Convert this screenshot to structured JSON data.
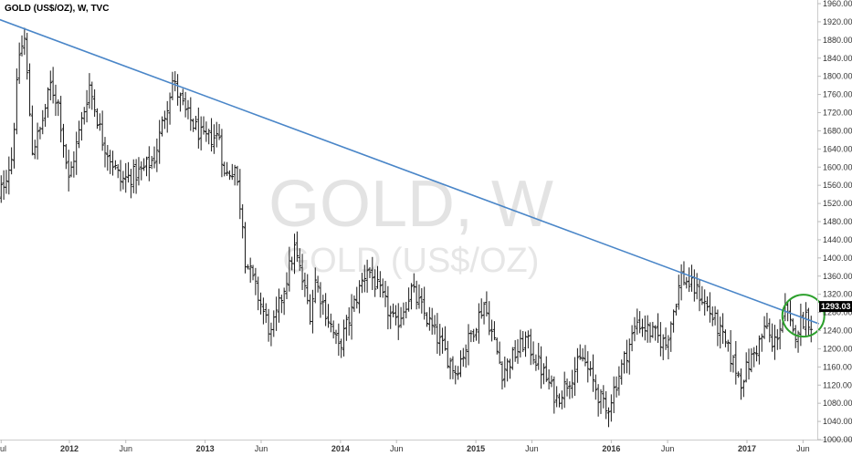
{
  "chart_data": {
    "type": "ohlc",
    "title": "GOLD (US$/OZ), W, TVC",
    "watermark_symbol": "GOLD, W",
    "watermark_name": "GOLD (US$/OZ)",
    "ylim": [
      1000,
      1960
    ],
    "y_ticks": [
      "1960.00",
      "1920.00",
      "1880.00",
      "1840.00",
      "1800.00",
      "1760.00",
      "1720.00",
      "1680.00",
      "1640.00",
      "1600.00",
      "1560.00",
      "1520.00",
      "1480.00",
      "1440.00",
      "1400.00",
      "1360.00",
      "1320.00",
      "1280.00",
      "1240.00",
      "1200.00",
      "1160.00",
      "1120.00",
      "1080.00",
      "1040.00",
      "1000.00"
    ],
    "x_ticks": [
      {
        "label": "Jul",
        "date": "2011-07-01",
        "bold": false
      },
      {
        "label": "2012",
        "date": "2012-01-01",
        "bold": true
      },
      {
        "label": "Jun",
        "date": "2012-06-01",
        "bold": false
      },
      {
        "label": "2013",
        "date": "2013-01-01",
        "bold": true
      },
      {
        "label": "Jun",
        "date": "2013-06-01",
        "bold": false
      },
      {
        "label": "2014",
        "date": "2014-01-01",
        "bold": true
      },
      {
        "label": "Jun",
        "date": "2014-06-01",
        "bold": false
      },
      {
        "label": "2015",
        "date": "2015-01-01",
        "bold": true
      },
      {
        "label": "Jun",
        "date": "2015-06-01",
        "bold": false
      },
      {
        "label": "2016",
        "date": "2016-01-01",
        "bold": true
      },
      {
        "label": "Jun",
        "date": "2016-06-01",
        "bold": false
      },
      {
        "label": "2017",
        "date": "2017-01-01",
        "bold": true
      },
      {
        "label": "Jun",
        "date": "2017-06-01",
        "bold": false
      }
    ],
    "last_price": "1293.03",
    "last_price_value": 1293.03,
    "anchors": [
      [
        "2011-06-10",
        1480
      ],
      [
        "2011-07-01",
        1550
      ],
      [
        "2011-07-29",
        1620
      ],
      [
        "2011-08-19",
        1850
      ],
      [
        "2011-09-02",
        1880
      ],
      [
        "2011-09-23",
        1640
      ],
      [
        "2011-10-14",
        1680
      ],
      [
        "2011-11-11",
        1780
      ],
      [
        "2011-12-02",
        1740
      ],
      [
        "2011-12-30",
        1570
      ],
      [
        "2012-02-24",
        1780
      ],
      [
        "2012-03-30",
        1660
      ],
      [
        "2012-05-18",
        1570
      ],
      [
        "2012-07-13",
        1590
      ],
      [
        "2012-08-17",
        1620
      ],
      [
        "2012-10-05",
        1790
      ],
      [
        "2012-11-09",
        1720
      ],
      [
        "2012-12-28",
        1660
      ],
      [
        "2013-02-08",
        1670
      ],
      [
        "2013-02-22",
        1580
      ],
      [
        "2013-03-22",
        1600
      ],
      [
        "2013-04-12",
        1480
      ],
      [
        "2013-04-19",
        1400
      ],
      [
        "2013-06-28",
        1230
      ],
      [
        "2013-08-30",
        1420
      ],
      [
        "2013-10-11",
        1280
      ],
      [
        "2013-10-25",
        1350
      ],
      [
        "2013-12-27",
        1200
      ],
      [
        "2014-03-14",
        1380
      ],
      [
        "2014-05-30",
        1250
      ],
      [
        "2014-07-11",
        1330
      ],
      [
        "2014-11-07",
        1150
      ],
      [
        "2015-01-23",
        1300
      ],
      [
        "2015-03-13",
        1150
      ],
      [
        "2015-05-15",
        1220
      ],
      [
        "2015-08-07",
        1090
      ],
      [
        "2015-10-16",
        1180
      ],
      [
        "2015-12-18",
        1060
      ],
      [
        "2016-03-11",
        1260
      ],
      [
        "2016-05-27",
        1210
      ],
      [
        "2016-07-08",
        1360
      ],
      [
        "2016-08-26",
        1320
      ],
      [
        "2016-10-07",
        1260
      ],
      [
        "2016-12-16",
        1130
      ],
      [
        "2017-02-24",
        1250
      ],
      [
        "2017-03-10",
        1200
      ],
      [
        "2017-04-14",
        1285
      ],
      [
        "2017-05-05",
        1230
      ],
      [
        "2017-06-09",
        1275
      ],
      [
        "2017-06-23",
        1255
      ]
    ],
    "trendline": [
      [
        "2011-06-10",
        1930
      ],
      [
        "2017-07-14",
        1255
      ]
    ],
    "highlight": {
      "center": [
        "2017-06-02",
        1273
      ],
      "color": "#2ca02c"
    },
    "line_color": "#4a86c8",
    "bar_color": "#1a1a1a",
    "grid": false,
    "legend": "none"
  }
}
